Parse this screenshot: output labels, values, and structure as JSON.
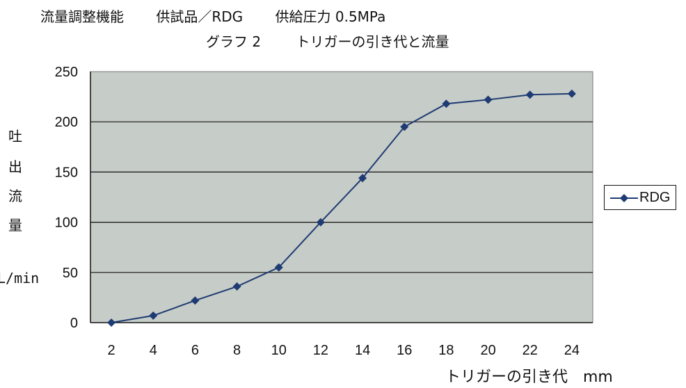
{
  "header": {
    "line1": [
      "流量調整機能",
      "供試品／RDG",
      "供給圧力 0.5MPa"
    ],
    "line2": [
      "グラフ 2",
      "トリガーの引き代と流量"
    ]
  },
  "chart_data": {
    "type": "line",
    "title": "グラフ 2　トリガーの引き代と流量",
    "xlabel": "トリガーの引き代　mm",
    "ylabel": "吐出流量",
    "yunit": "L/min",
    "ylabel_chars": [
      "吐",
      "出",
      "流",
      "量"
    ],
    "x": [
      2,
      4,
      6,
      8,
      10,
      12,
      14,
      16,
      18,
      20,
      22,
      24
    ],
    "series": [
      {
        "name": "RDG",
        "values": [
          0,
          7,
          22,
          36,
          55,
          100,
          144,
          195,
          218,
          222,
          227,
          228
        ],
        "color": "#1f3b73"
      }
    ],
    "ylim": [
      0,
      250
    ],
    "yticks": [
      0,
      50,
      100,
      150,
      200,
      250
    ],
    "grid": true,
    "plot_background": "#c6ccc7",
    "legend": "right"
  }
}
